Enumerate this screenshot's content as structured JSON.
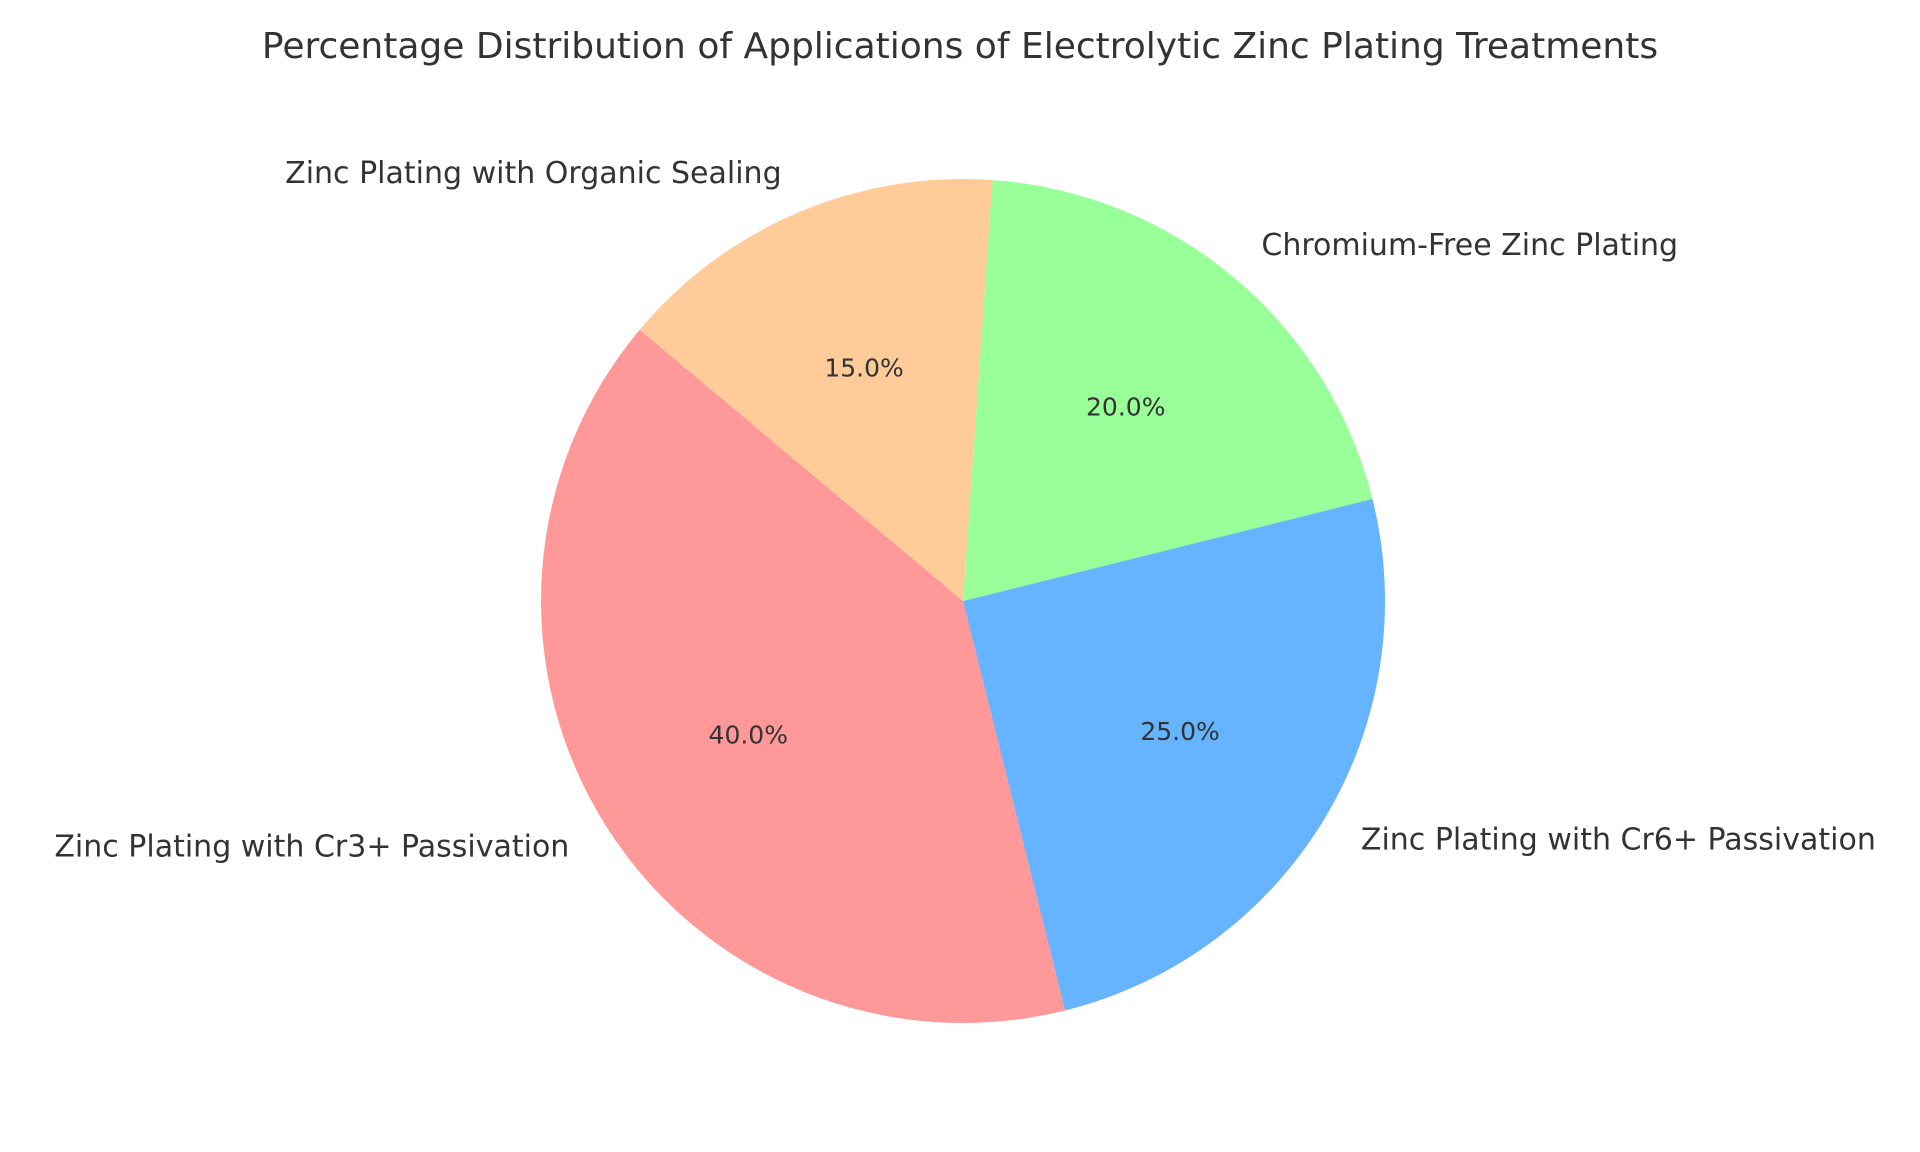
{
  "chart_data": {
    "type": "pie",
    "title": "Percentage Distribution of Applications of Electrolytic Zinc Plating Treatments",
    "labels": [
      "Zinc Plating with Cr3+ Passivation",
      "Zinc Plating with Cr6+ Passivation",
      "Chromium-Free Zinc Plating",
      "Zinc Plating with Organic Sealing"
    ],
    "values": [
      40,
      25,
      20,
      15
    ],
    "percent_labels": [
      "40.0%",
      "25.0%",
      "20.0%",
      "15.0%"
    ],
    "colors": [
      "#ff9999",
      "#66b3ff",
      "#99ff99",
      "#ffcc99"
    ],
    "start_angle_deg": 140,
    "direction": "counterclockwise",
    "legend": "none"
  }
}
